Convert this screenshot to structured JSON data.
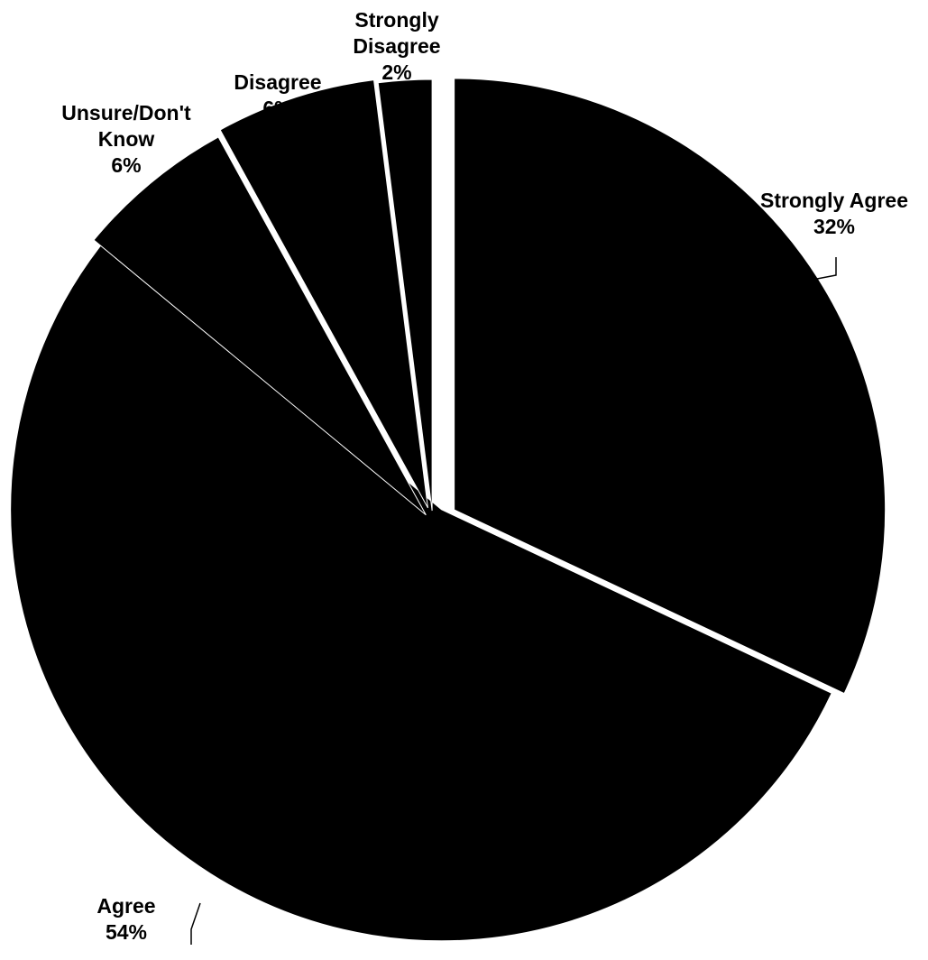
{
  "chart_data": {
    "type": "pie",
    "start_angle_deg": 0,
    "direction": "clockwise",
    "exploded": true,
    "slice_color": "#000000",
    "background_color": "#ffffff",
    "slices": [
      {
        "label": "Strongly Agree",
        "label_lines": [
          "Strongly Agree",
          "32%"
        ],
        "value": 32
      },
      {
        "label": "Agree",
        "label_lines": [
          "Agree",
          "54%"
        ],
        "value": 54
      },
      {
        "label": "Unsure/Don't Know",
        "label_lines": [
          "Unsure/Don't",
          "Know",
          "6%"
        ],
        "value": 6
      },
      {
        "label": "Disagree",
        "label_lines": [
          "Disagree",
          "6%"
        ],
        "value": 6
      },
      {
        "label": "Strongly Disagree",
        "label_lines": [
          "Strongly",
          "Disagree",
          "2%"
        ],
        "value": 2
      }
    ]
  }
}
